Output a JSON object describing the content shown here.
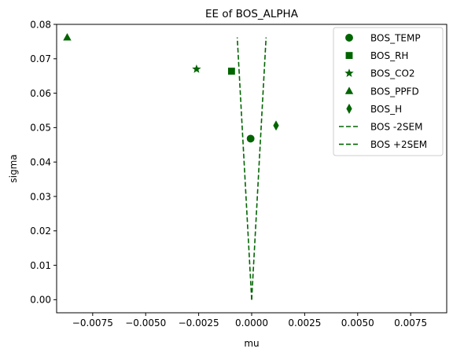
{
  "chart_data": {
    "type": "scatter",
    "title": "EE of BOS_ALPHA",
    "xlabel": "mu",
    "ylabel": "sigma",
    "xlim": [
      -0.0092,
      0.0092
    ],
    "ylim": [
      -0.0038,
      0.08
    ],
    "xticks": [
      -0.0075,
      -0.005,
      -0.0025,
      0.0,
      0.0025,
      0.005,
      0.0075
    ],
    "xtick_labels": [
      "−0.0075",
      "−0.0050",
      "−0.0025",
      "0.0000",
      "0.0025",
      "0.0050",
      "0.0075"
    ],
    "yticks": [
      0.0,
      0.01,
      0.02,
      0.03,
      0.04,
      0.05,
      0.06,
      0.07,
      0.08
    ],
    "ytick_labels": [
      "0.00",
      "0.01",
      "0.02",
      "0.03",
      "0.04",
      "0.05",
      "0.06",
      "0.07",
      "0.08"
    ],
    "grid": false,
    "legend_position": "top-right",
    "color": "#006400",
    "points": [
      {
        "name": "BOS_TEMP",
        "marker": "circle",
        "x": -5e-05,
        "y": 0.0468
      },
      {
        "name": "BOS_RH",
        "marker": "square",
        "x": -0.00095,
        "y": 0.0664
      },
      {
        "name": "BOS_CO2",
        "marker": "star",
        "x": -0.0026,
        "y": 0.067
      },
      {
        "name": "BOS_PPFD",
        "marker": "triangle",
        "x": -0.0087,
        "y": 0.0762
      },
      {
        "name": "BOS_H",
        "marker": "thin-diamond",
        "x": 0.00115,
        "y": 0.0506
      }
    ],
    "lines": [
      {
        "name": "BOS -2SEM",
        "style": "dashed",
        "x": [
          0.0,
          -0.00068
        ],
        "y": [
          0.0,
          0.0762
        ]
      },
      {
        "name": "BOS +2SEM",
        "style": "dashed",
        "x": [
          0.0,
          0.00068
        ],
        "y": [
          0.0,
          0.0762
        ]
      }
    ]
  }
}
